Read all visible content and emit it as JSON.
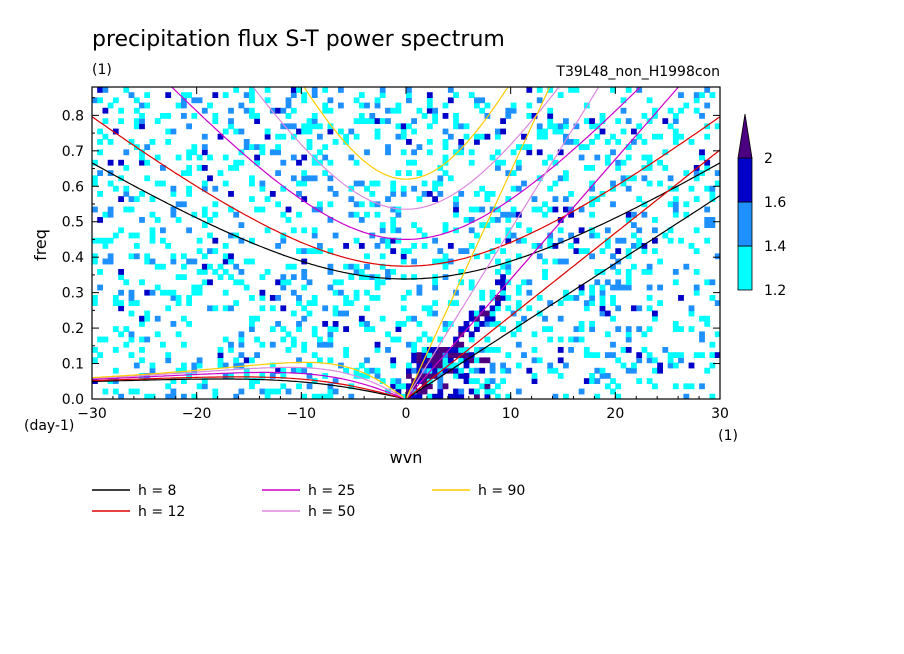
{
  "chart_data": {
    "type": "heatmap",
    "title": "precipitation flux S-T power spectrum",
    "subtitle_left": "(1)",
    "subtitle_right": "T39L48_non_H1998con",
    "xlabel": "wvn",
    "ylabel": "freq",
    "x_unit": "(1)",
    "y_unit": "(day-1)",
    "xlim": [
      -30,
      30
    ],
    "ylim": [
      0,
      0.88
    ],
    "x_ticks": [
      -30,
      -20,
      -10,
      0,
      10,
      20,
      30
    ],
    "x_tick_labels": [
      "−30",
      "−20",
      "−10",
      "0",
      "10",
      "20",
      "30"
    ],
    "y_ticks": [
      0,
      0.1,
      0.2,
      0.3,
      0.4,
      0.5,
      0.6,
      0.7,
      0.8
    ],
    "y_tick_labels": [
      "0.0",
      "0.1",
      "0.2",
      "0.3",
      "0.4",
      "0.5",
      "0.6",
      "0.7",
      "0.8"
    ],
    "colorbar": {
      "levels": [
        1.2,
        1.4,
        1.6,
        2
      ],
      "labels": [
        "1.2",
        "1.4",
        "1.6",
        "2"
      ],
      "colors": [
        "#00ffff",
        "#1e90ff",
        "#0000c8",
        "#4b0082"
      ]
    },
    "series": [
      {
        "name": "h =  8",
        "h": 8,
        "color": "#000000"
      },
      {
        "name": "h = 12",
        "h": 12,
        "color": "#dd0000"
      },
      {
        "name": "h = 25",
        "h": 25,
        "color": "#cc00cc"
      },
      {
        "name": "h = 50",
        "h": 50,
        "color": "#dd88dd"
      },
      {
        "name": "h = 90",
        "h": 90,
        "color": "#ffcc00"
      }
    ]
  }
}
